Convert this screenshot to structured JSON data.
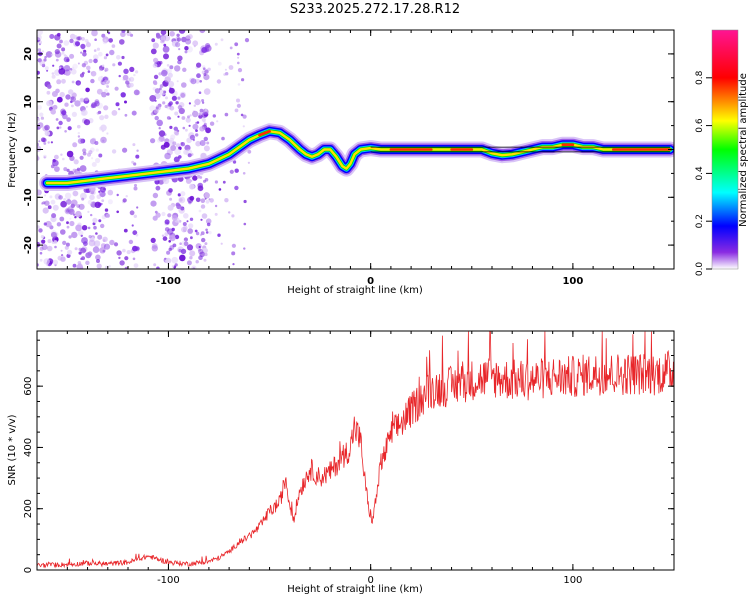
{
  "chart_data": [
    {
      "type": "heatmap",
      "title": "S233.2025.272.17.28.R12",
      "xlabel": "Height of straight line (km)",
      "ylabel": "Frequency (Hz)",
      "xlim": [
        -165,
        150
      ],
      "ylim": [
        -25,
        25
      ],
      "xticks": [
        -100,
        0,
        100
      ],
      "yticks": [
        -20,
        -10,
        0,
        10,
        20
      ],
      "colorbar": {
        "label": "Normalized spectral amplitude",
        "ticks": [
          "0.0",
          "0.2",
          "0.4",
          "0.6",
          "0.8"
        ],
        "range": [
          0,
          1
        ]
      },
      "ridge": [
        [
          -160,
          -7
        ],
        [
          -150,
          -7
        ],
        [
          -140,
          -6.5
        ],
        [
          -130,
          -6
        ],
        [
          -120,
          -5.5
        ],
        [
          -110,
          -5
        ],
        [
          -100,
          -4.5
        ],
        [
          -90,
          -4
        ],
        [
          -80,
          -3
        ],
        [
          -75,
          -2
        ],
        [
          -70,
          -1
        ],
        [
          -65,
          0.5
        ],
        [
          -60,
          2
        ],
        [
          -55,
          3
        ],
        [
          -50,
          3.8
        ],
        [
          -45,
          3.5
        ],
        [
          -40,
          2
        ],
        [
          -35,
          0
        ],
        [
          -32,
          -1
        ],
        [
          -29,
          -1.5
        ],
        [
          -26,
          -1
        ],
        [
          -23,
          0
        ],
        [
          -20,
          0
        ],
        [
          -17,
          -1.5
        ],
        [
          -14,
          -3.5
        ],
        [
          -12,
          -4
        ],
        [
          -10,
          -3
        ],
        [
          -8,
          -1
        ],
        [
          -5,
          0
        ],
        [
          0,
          0.3
        ],
        [
          5,
          0
        ],
        [
          10,
          0
        ],
        [
          20,
          0
        ],
        [
          30,
          0
        ],
        [
          40,
          0
        ],
        [
          50,
          0
        ],
        [
          55,
          0
        ],
        [
          60,
          -0.8
        ],
        [
          65,
          -1.2
        ],
        [
          70,
          -1
        ],
        [
          75,
          -0.5
        ],
        [
          80,
          0
        ],
        [
          85,
          0.5
        ],
        [
          90,
          0.5
        ],
        [
          95,
          1
        ],
        [
          100,
          1
        ],
        [
          105,
          0.5
        ],
        [
          110,
          0.5
        ],
        [
          115,
          0
        ],
        [
          120,
          0
        ],
        [
          130,
          0
        ],
        [
          140,
          0
        ],
        [
          148,
          0
        ]
      ]
    },
    {
      "type": "line",
      "xlabel": "Height of straight line (km)",
      "ylabel": "SNR (10 * v/v)",
      "xlim": [
        -165,
        150
      ],
      "ylim": [
        0,
        780
      ],
      "xticks": [
        -100,
        0,
        100
      ],
      "yticks": [
        0,
        200,
        400,
        600
      ],
      "series": [
        {
          "name": "SNR",
          "x": [
            -165,
            -150,
            -140,
            -130,
            -120,
            -110,
            -105,
            -100,
            -90,
            -80,
            -75,
            -70,
            -65,
            -60,
            -55,
            -50,
            -45,
            -42,
            -40,
            -38,
            -35,
            -30,
            -25,
            -20,
            -15,
            -10,
            -8,
            -5,
            -3,
            -1,
            1,
            5,
            10,
            15,
            20,
            25,
            30,
            40,
            50,
            60,
            70,
            80,
            90,
            100,
            110,
            120,
            130,
            140,
            150
          ],
          "values": [
            15,
            18,
            22,
            20,
            25,
            45,
            35,
            25,
            20,
            28,
            40,
            60,
            90,
            110,
            140,
            190,
            220,
            300,
            210,
            170,
            260,
            330,
            300,
            320,
            360,
            400,
            470,
            420,
            300,
            200,
            160,
            340,
            440,
            480,
            520,
            560,
            590,
            600,
            620,
            630,
            620,
            620,
            630,
            630,
            640,
            640,
            640,
            640,
            650
          ]
        }
      ]
    }
  ]
}
